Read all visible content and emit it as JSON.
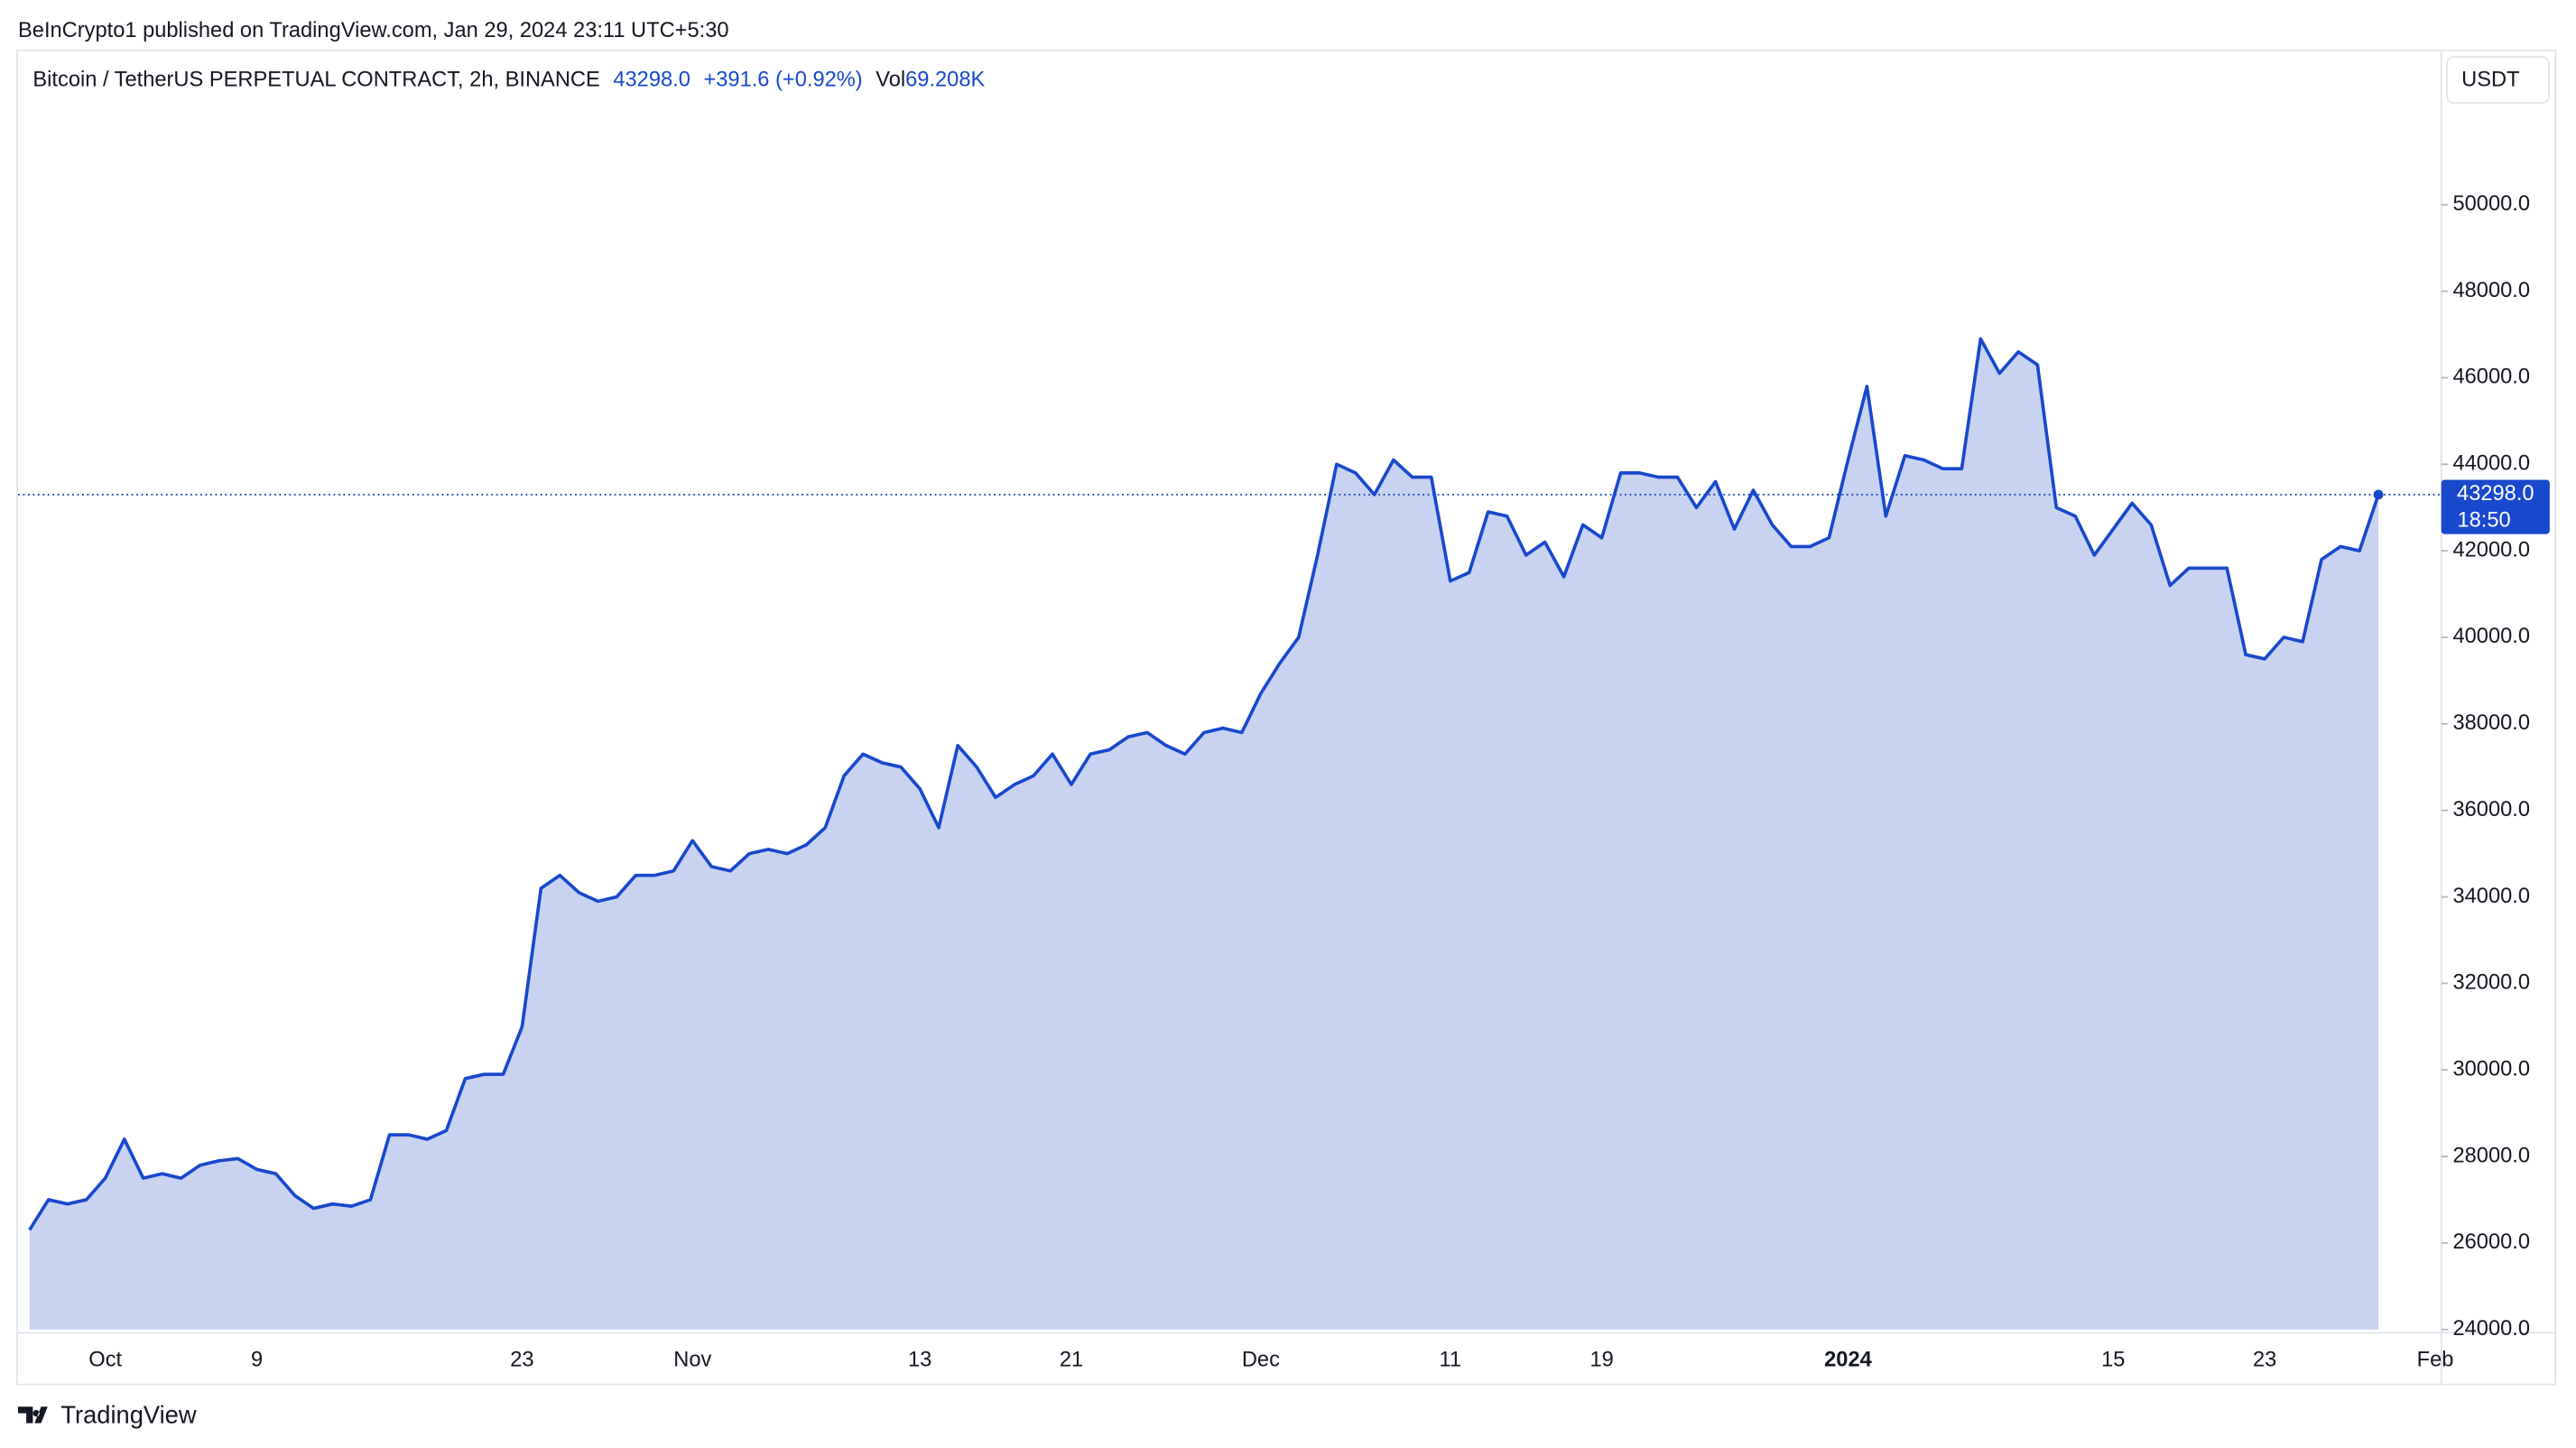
{
  "header": {
    "published": "BeInCrypto1 published on TradingView.com, Jan 29, 2024 23:11 UTC+5:30"
  },
  "footer": {
    "brand": "TradingView"
  },
  "chart_data": {
    "type": "area",
    "title": "Bitcoin / TetherUS PERPETUAL CONTRACT, 2h, BINANCE",
    "legend_price": "43298.0",
    "change": "+391.6 (+0.92%)",
    "volume_label": "Vol",
    "volume": "69.208K",
    "currency": "USDT",
    "countdown": "18:50",
    "color": "#1848cc",
    "fill": "#c8d3f2",
    "categories": [
      null,
      null,
      null,
      null,
      "Oct",
      null,
      null,
      null,
      null,
      null,
      null,
      null,
      "9",
      null,
      null,
      null,
      null,
      null,
      null,
      null,
      null,
      null,
      null,
      null,
      null,
      null,
      "23",
      null,
      null,
      null,
      null,
      null,
      null,
      null,
      null,
      "Nov",
      null,
      null,
      null,
      null,
      null,
      null,
      null,
      null,
      null,
      null,
      null,
      "13",
      null,
      null,
      null,
      null,
      null,
      null,
      null,
      "21",
      null,
      null,
      null,
      null,
      null,
      null,
      null,
      null,
      null,
      "Dec",
      null,
      null,
      null,
      null,
      null,
      null,
      null,
      null,
      null,
      "11",
      null,
      null,
      null,
      null,
      null,
      null,
      null,
      "19",
      null,
      null,
      null,
      null,
      null,
      null,
      null,
      null,
      null,
      null,
      null,
      null,
      "2024",
      null,
      null,
      null,
      null,
      null,
      null,
      null,
      null,
      null,
      null,
      null,
      null,
      null,
      "15",
      null,
      null,
      null,
      null,
      null,
      null,
      null,
      "23",
      null,
      null,
      null,
      null,
      null,
      null,
      null,
      null,
      "Feb"
    ],
    "values": [
      26300,
      27000,
      26900,
      27000,
      27500,
      28400,
      27500,
      27600,
      27500,
      27800,
      27900,
      27950,
      27700,
      27600,
      27100,
      26800,
      26900,
      26850,
      27000,
      28500,
      28500,
      28400,
      28600,
      29800,
      29900,
      29900,
      31000,
      34200,
      34500,
      34100,
      33900,
      34000,
      34500,
      34500,
      34600,
      35300,
      34700,
      34600,
      35000,
      35100,
      35000,
      35200,
      35600,
      36800,
      37300,
      37100,
      37000,
      36500,
      35600,
      37500,
      37000,
      36300,
      36600,
      36800,
      37300,
      36600,
      37300,
      37400,
      37700,
      37800,
      37500,
      37300,
      37800,
      37900,
      37800,
      38700,
      39400,
      40000,
      41900,
      44000,
      43800,
      43300,
      44100,
      43700,
      43700,
      41300,
      41500,
      42900,
      42800,
      41900,
      42200,
      41400,
      42600,
      42300,
      43800,
      43800,
      43700,
      43700,
      43000,
      43600,
      42500,
      43400,
      42600,
      42100,
      42100,
      42300,
      44100,
      45800,
      42800,
      44200,
      44100,
      43900,
      43900,
      46900,
      46100,
      46600,
      46300,
      43000,
      42800,
      41900,
      42500,
      43100,
      42600,
      41200,
      41600,
      41600,
      41600,
      39600,
      39500,
      40000,
      39900,
      41800,
      42100,
      42000,
      43298,
      null,
      null,
      null
    ],
    "value_labels": [
      null,
      null,
      null,
      null,
      null,
      null,
      null,
      null,
      null,
      null,
      null,
      null,
      null,
      null,
      null,
      null,
      null,
      null,
      null,
      null,
      null,
      null,
      null,
      null,
      null,
      null,
      null,
      null,
      null,
      null,
      null,
      null,
      null,
      null,
      null,
      null,
      null,
      null,
      null,
      null,
      null,
      null,
      null,
      null,
      null,
      null,
      null,
      null,
      null,
      null,
      null,
      null,
      null,
      null,
      null,
      null,
      null,
      null,
      null,
      null,
      null,
      null,
      null,
      null,
      null,
      null,
      null,
      null,
      null,
      null,
      null,
      null,
      null,
      null,
      null,
      null,
      null,
      null,
      null,
      null,
      null,
      null,
      null,
      null,
      null,
      null,
      null,
      null,
      null,
      null,
      null,
      null,
      null,
      null,
      null,
      null,
      null,
      null,
      null,
      null,
      null,
      null,
      null,
      null,
      null,
      null,
      null,
      null,
      null,
      null,
      null,
      null,
      null,
      null,
      null,
      null,
      null,
      null,
      null,
      null,
      null,
      null,
      null,
      null,
      "43298.0",
      null,
      null,
      null
    ],
    "ylim": [
      24000,
      53550
    ],
    "yticks": [
      {
        "value": 24000,
        "label": "24000.0"
      },
      {
        "value": 26000,
        "label": "26000.0"
      },
      {
        "value": 28000,
        "label": "28000.0"
      },
      {
        "value": 30000,
        "label": "30000.0"
      },
      {
        "value": 32000,
        "label": "32000.0"
      },
      {
        "value": 34000,
        "label": "34000.0"
      },
      {
        "value": 36000,
        "label": "36000.0"
      },
      {
        "value": 38000,
        "label": "38000.0"
      },
      {
        "value": 40000,
        "label": "40000.0"
      },
      {
        "value": 42000,
        "label": "42000.0"
      },
      {
        "value": 44000,
        "label": "44000.0"
      },
      {
        "value": 46000,
        "label": "46000.0"
      },
      {
        "value": 48000,
        "label": "48000.0"
      },
      {
        "value": 50000,
        "label": "50000.0"
      }
    ],
    "grid": false
  }
}
